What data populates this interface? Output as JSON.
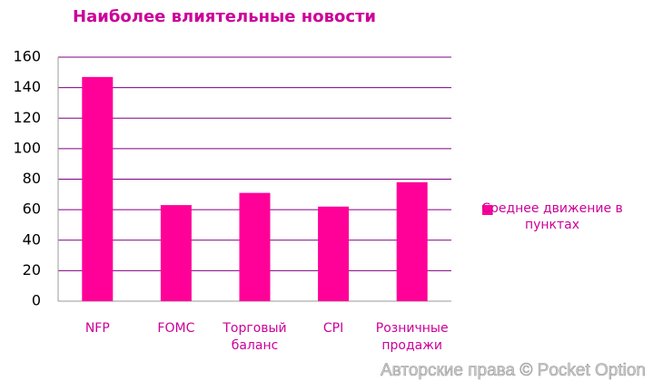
{
  "chart_data": {
    "type": "bar",
    "title": "Наиболее влиятельные новости",
    "categories": [
      "NFP",
      "FOMC",
      "Торговый баланс",
      "CPI",
      "Розничные продажи"
    ],
    "series": [
      {
        "name": "Среднее движение в пунктах",
        "color": "#ff0099",
        "values": [
          147,
          63,
          71,
          62,
          78
        ]
      }
    ],
    "ylim": [
      0,
      160
    ],
    "yticks": [
      0,
      20,
      40,
      60,
      80,
      100,
      120,
      140,
      160
    ],
    "grid": true,
    "legend": "right",
    "watermark": "Авторские права © Pocket Option"
  }
}
